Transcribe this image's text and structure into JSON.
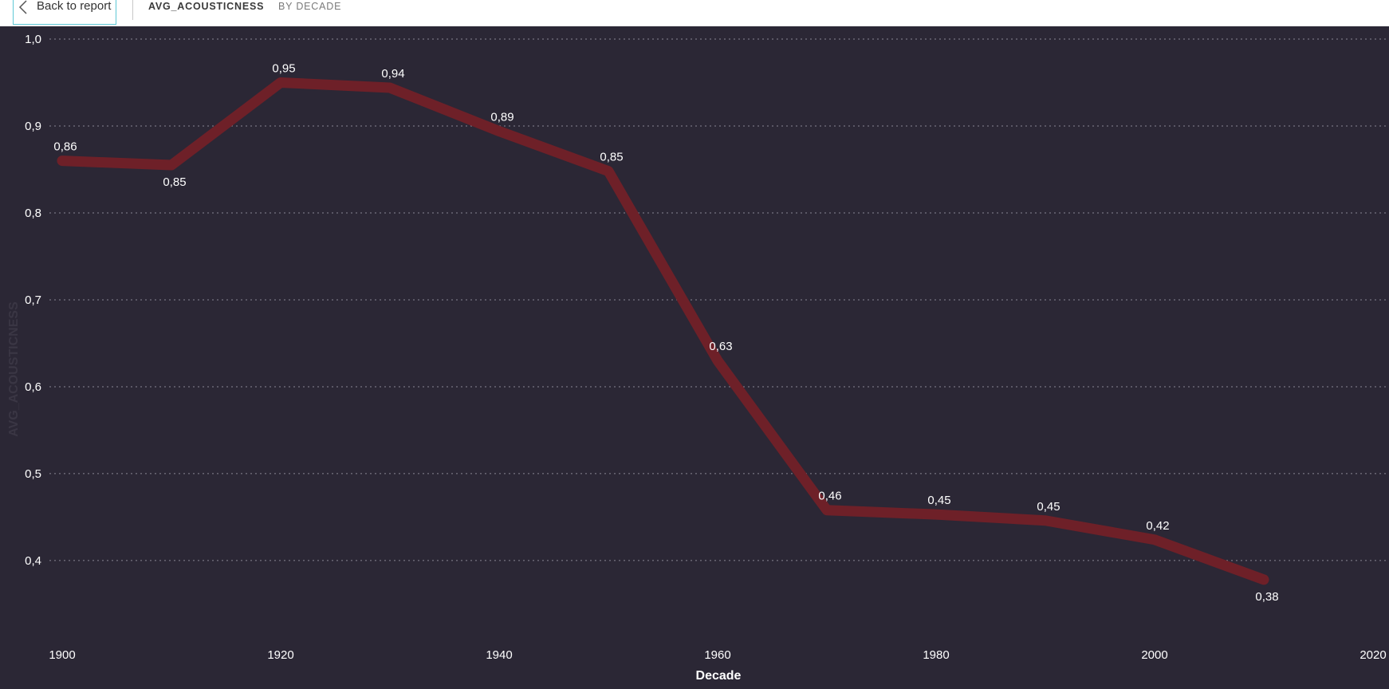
{
  "header": {
    "back_label": "Back to report",
    "measure": "AVG_ACOUSTICNESS",
    "by": "BY DECADE"
  },
  "icons": {
    "back": "chevron-left-icon"
  },
  "colors": {
    "background": "#2b2735",
    "line": "#6e2028",
    "gridline": "#8a8795",
    "text": "#ffffff",
    "accent": "#5fc8d6"
  },
  "chart_data": {
    "type": "line",
    "title": "",
    "xlabel": "Decade",
    "ylabel": "AVG_ACOUSTICNESS",
    "x": [
      1900,
      1910,
      1920,
      1930,
      1940,
      1950,
      1960,
      1970,
      1980,
      1990,
      2000,
      2010
    ],
    "series": [
      {
        "values": [
          0.86,
          0.855,
          0.95,
          0.944,
          0.894,
          0.848,
          0.63,
          0.458,
          0.453,
          0.446,
          0.424,
          0.378
        ],
        "labels": [
          "0,86",
          "0,85",
          "0,95",
          "0,94",
          "0,89",
          "0,85",
          "0,63",
          "0,46",
          "0,45",
          "0,45",
          "0,42",
          "0,38"
        ],
        "label_side": [
          "above",
          "below",
          "above",
          "above",
          "above",
          "above",
          "above",
          "above",
          "above",
          "above",
          "above",
          "below"
        ]
      }
    ],
    "xlim": [
      1900,
      2020
    ],
    "ylim": [
      0.31,
      1.0
    ],
    "x_ticks": [
      1900,
      1920,
      1940,
      1960,
      1980,
      2000,
      2020
    ],
    "x_tick_labels": [
      "1900",
      "1920",
      "1940",
      "1960",
      "1980",
      "2000",
      "2020"
    ],
    "y_ticks": [
      0.4,
      0.5,
      0.6,
      0.7,
      0.8,
      0.9,
      1.0
    ],
    "y_tick_labels": [
      "0,4",
      "0,5",
      "0,6",
      "0,7",
      "0,8",
      "0,9",
      "1,0"
    ],
    "grid": true,
    "legend": "none"
  }
}
